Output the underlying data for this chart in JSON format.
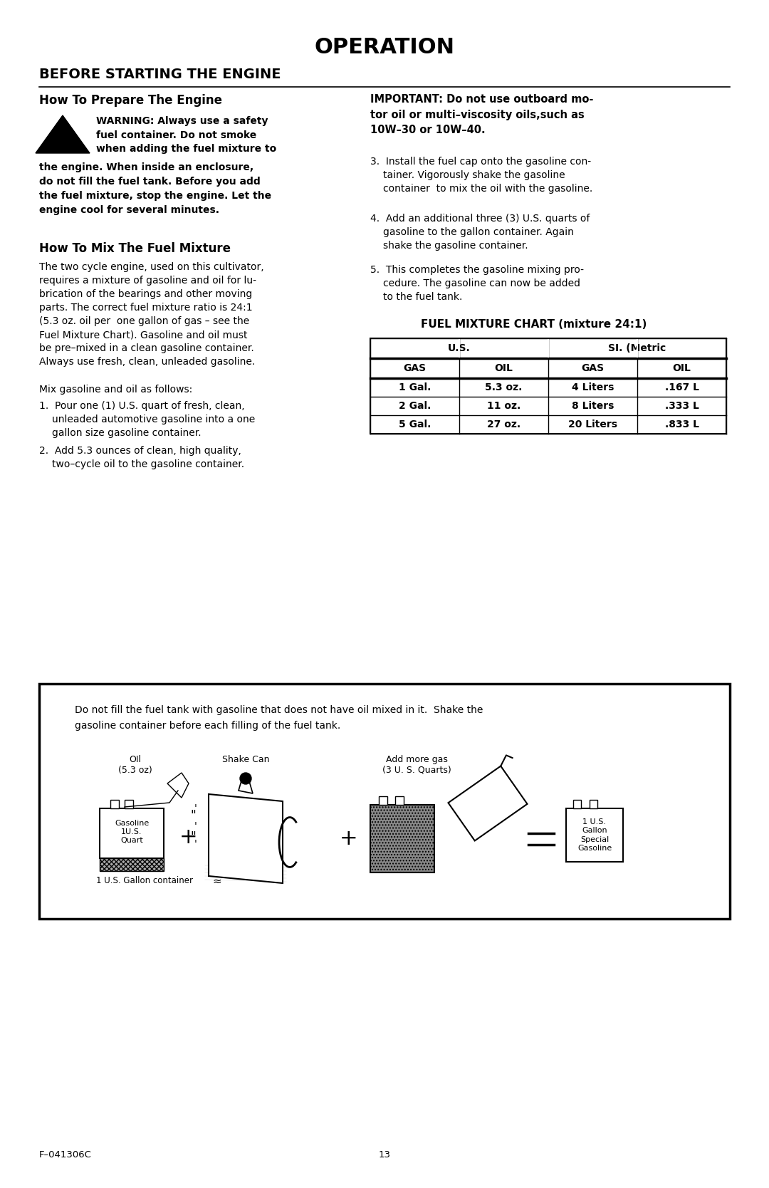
{
  "title": "OPERATION",
  "section1_title": "BEFORE STARTING THE ENGINE",
  "subsection1_title": "How To Prepare The Engine",
  "warning_text_beside": "WARNING: Always use a safety\nfuel container. Do not smoke\nwhen adding the fuel mixture to",
  "warning_text_full": "the engine. When inside an enclosure,\ndo not fill the fuel tank. Before you add\nthe fuel mixture, stop the engine. Let the\nengine cool for several minutes.",
  "subsection2_title": "How To Mix The Fuel Mixture",
  "mix_para1_line1": "The two cycle engine, used on this cultivator,",
  "mix_para1_line2": "requires a mixture of gasoline and oil for lu-",
  "mix_para1_line3": "brication of the bearings and other moving",
  "mix_para1_line4": "parts. The correct fuel mixture ratio is 24:1",
  "mix_para1_line5": "(5.3 oz. oil per  one gallon of gas – see the",
  "mix_para1_line6": "Fuel Mixture Chart). Gasoline and oil must",
  "mix_para1_line7": "be pre–mixed in a clean gasoline container.",
  "mix_para1_line8": "Always use fresh, clean, unleaded gasoline.",
  "mix_para2": "Mix gasoline and oil as follows:",
  "step1_line1": "1.  Pour one (1) U.S. quart of fresh, clean,",
  "step1_line2": "    unleaded automotive gasoline into a one",
  "step1_line3": "    gallon size gasoline container.",
  "step2_line1": "2.  Add 5.3 ounces of clean, high quality,",
  "step2_line2": "    two–cycle oil to the gasoline container.",
  "right_important_line1": "IMPORTANT: Do not use outboard mo-",
  "right_important_line2": "tor oil or multi–viscosity oils,such as",
  "right_important_line3": "10W–30 or 10W–40.",
  "step3_line1": "3.  Install the fuel cap onto the gasoline con-",
  "step3_line2": "    tainer. Vigorously shake the gasoline",
  "step3_line3": "    container  to mix the oil with the gasoline.",
  "step4_line1": "4.  Add an additional three (3) U.S. quarts of",
  "step4_line2": "    gasoline to the gallon container. Again",
  "step4_line3": "    shake the gasoline container.",
  "step5_line1": "5.  This completes the gasoline mixing pro-",
  "step5_line2": "    cedure. The gasoline can now be added",
  "step5_line3": "    to the fuel tank.",
  "chart_title": "FUEL MIXTURE CHART (mixture 24:1)",
  "chart_header1_left": "U.S.",
  "chart_header1_right": "SI. (Metric",
  "chart_subheaders": [
    "GAS",
    "OIL",
    "GAS",
    "OIL"
  ],
  "chart_rows": [
    [
      "1 Gal.",
      "5.3 oz.",
      "4 Liters",
      ".167 L"
    ],
    [
      "2 Gal.",
      "11 oz.",
      "8 Liters",
      ".333 L"
    ],
    [
      "5 Gal.",
      "27 oz.",
      "20 Liters",
      ".833 L"
    ]
  ],
  "box_text_line1": "Do not fill the fuel tank with gasoline that does not have oil mixed in it.  Shake the",
  "box_text_line2": "gasoline container before each filling of the fuel tank.",
  "oil_label": "OIl\n(5.3 oz)",
  "shake_label": "Shake Can",
  "addgas_label": "Add more gas\n(3 U. S. Quarts)",
  "gasoline_box_label": "Gasoline\n1U.S.\nQuart",
  "gallon_container_label": "1 U.S. Gallon container",
  "result_box_label": "1 U.S.\nGallon\nSpecial\nGasoline",
  "footer_left": "F–041306C",
  "footer_center": "13",
  "bg_color": "#ffffff"
}
